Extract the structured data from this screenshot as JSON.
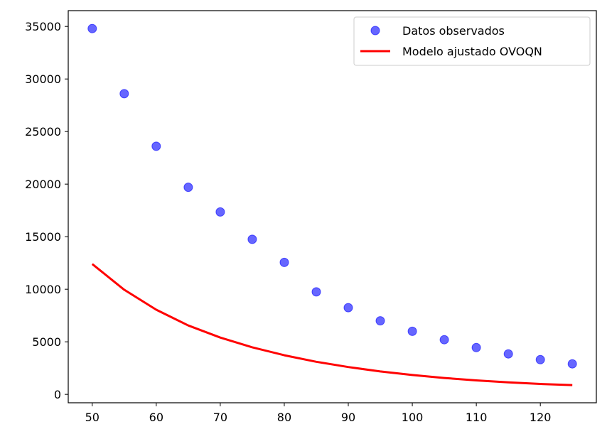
{
  "chart_data": {
    "type": "scatter",
    "title": "",
    "xlabel": "",
    "ylabel": "",
    "xlim": [
      46.25,
      128.75
    ],
    "ylim": [
      -800,
      36500
    ],
    "x_ticks": [
      50,
      60,
      70,
      80,
      90,
      100,
      110,
      120
    ],
    "y_ticks": [
      0,
      5000,
      10000,
      15000,
      20000,
      25000,
      30000,
      35000
    ],
    "grid": false,
    "legend_position": "top-right",
    "series": [
      {
        "name": "Datos observados",
        "kind": "scatter",
        "color": "#0000ff",
        "x": [
          50,
          55,
          60,
          65,
          70,
          75,
          80,
          85,
          90,
          95,
          100,
          105,
          110,
          115,
          120,
          125
        ],
        "y": [
          34800,
          28600,
          23600,
          19700,
          17350,
          14750,
          12550,
          9750,
          8250,
          7000,
          6000,
          5200,
          4450,
          3850,
          3300,
          2900
        ]
      },
      {
        "name": "Modelo ajustado OVOQN",
        "kind": "line",
        "color": "#ff0000",
        "x": [
          50,
          55,
          60,
          65,
          70,
          75,
          80,
          85,
          90,
          95,
          100,
          105,
          110,
          115,
          120,
          125
        ],
        "y": [
          12400,
          9950,
          8050,
          6550,
          5400,
          4480,
          3720,
          3100,
          2600,
          2180,
          1840,
          1560,
          1330,
          1140,
          990,
          880
        ]
      }
    ]
  }
}
